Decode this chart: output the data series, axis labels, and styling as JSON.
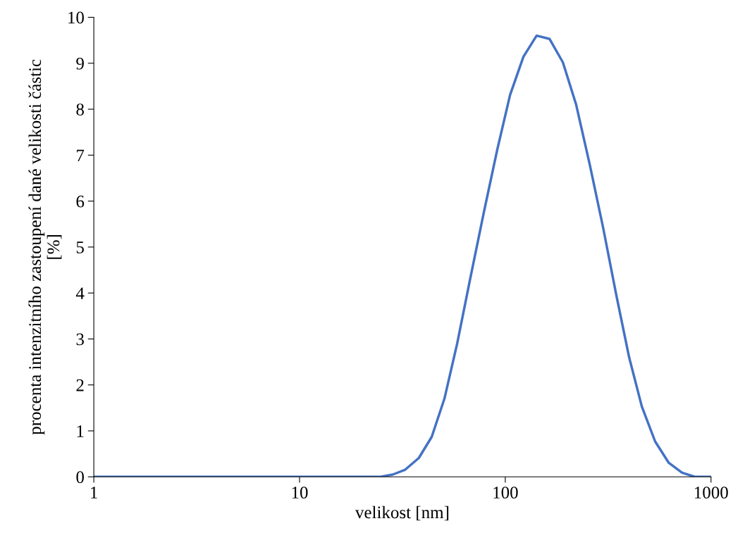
{
  "chart_data": {
    "type": "line",
    "xlabel": "velikost [nm]",
    "ylabel": "procenta intenzitního zastoupení dané velikosti částic\n[%]",
    "log": "x",
    "xlim": [
      1,
      1000
    ],
    "xticks": [
      1,
      10,
      100,
      1000
    ],
    "ylim": [
      0,
      10
    ],
    "yticks": [
      0,
      1,
      2,
      3,
      4,
      5,
      6,
      7,
      8,
      9,
      10
    ],
    "grid": false,
    "marker": "none",
    "line_style": "solid",
    "series": [
      {
        "color": "#4472c4",
        "x": [
          1,
          2,
          5,
          10,
          20,
          24.8,
          28.4,
          32.5,
          38.0,
          43.9,
          50.6,
          58.3,
          67.8,
          78.8,
          91.4,
          105.5,
          122.5,
          142,
          164,
          190.5,
          221,
          257,
          299,
          347,
          400,
          461,
          535,
          622,
          723,
          834,
          1000
        ],
        "values": [
          0,
          0,
          0,
          0,
          0,
          0,
          0.05,
          0.15,
          0.41,
          0.87,
          1.7,
          2.89,
          4.35,
          5.77,
          7.12,
          8.31,
          9.14,
          9.6,
          9.53,
          9.02,
          8.1,
          6.81,
          5.42,
          3.94,
          2.6,
          1.53,
          0.77,
          0.31,
          0.09,
          0,
          0
        ]
      }
    ]
  }
}
